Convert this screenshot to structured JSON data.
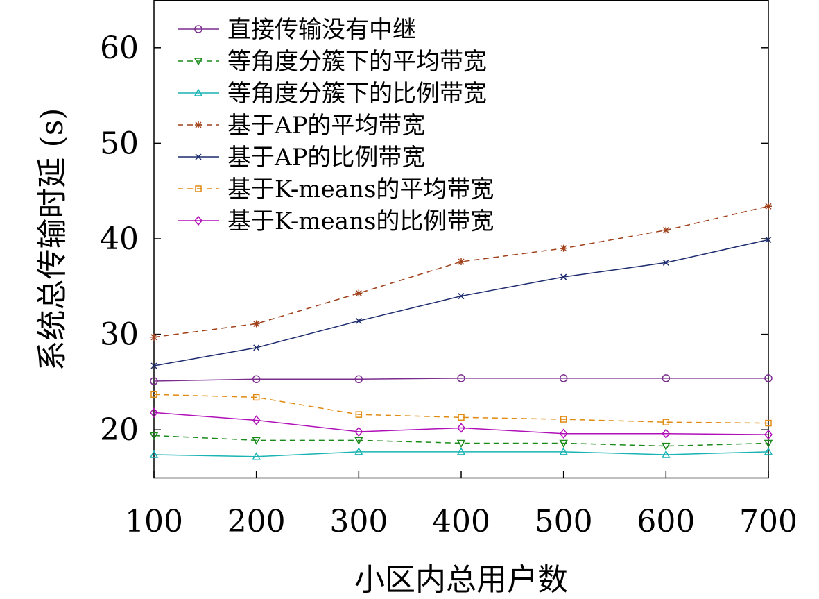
{
  "chart_data": {
    "type": "line",
    "xlabel": "小区内总用户数",
    "ylabel": "系统总传输时延 (s)",
    "x": [
      100,
      200,
      300,
      400,
      500,
      600,
      700
    ],
    "xlim": [
      100,
      700
    ],
    "ylim": [
      15,
      65
    ],
    "yticks": [
      20,
      30,
      40,
      50,
      60
    ],
    "xtick_labels": [
      "100",
      "200",
      "300",
      "400",
      "500",
      "600",
      "700"
    ],
    "ytick_labels": [
      "20",
      "30",
      "40",
      "50",
      "60"
    ],
    "grid": false,
    "legend_position": "top-left",
    "series": [
      {
        "name": "直接传输没有中继",
        "values": [
          25.1,
          25.3,
          25.3,
          25.4,
          25.4,
          25.4,
          25.4
        ],
        "color": "#7b2d8e",
        "marker": "circle",
        "dash": "solid"
      },
      {
        "name": "等角度分簇下的平均带宽",
        "values": [
          19.4,
          18.9,
          18.9,
          18.6,
          18.6,
          18.3,
          18.6
        ],
        "color": "#1a8a1a",
        "marker": "triangle-down",
        "dash": "dashed"
      },
      {
        "name": "等角度分簇下的比例带宽",
        "values": [
          17.4,
          17.2,
          17.7,
          17.7,
          17.7,
          17.4,
          17.7
        ],
        "color": "#19b3b3",
        "marker": "triangle-up",
        "dash": "solid"
      },
      {
        "name": "基于AP的平均带宽",
        "values": [
          29.7,
          31.1,
          34.3,
          37.6,
          39.0,
          40.9,
          43.4
        ],
        "color": "#a0401a",
        "marker": "asterisk",
        "dash": "dashed"
      },
      {
        "name": "基于AP的比例带宽",
        "values": [
          26.7,
          28.6,
          31.4,
          34.0,
          36.0,
          37.5,
          39.9
        ],
        "color": "#1c2a6e",
        "marker": "x",
        "dash": "solid"
      },
      {
        "name": "基于K-means的平均带宽",
        "values": [
          23.7,
          23.4,
          21.6,
          21.3,
          21.1,
          20.8,
          20.7
        ],
        "color": "#e08a10",
        "marker": "square",
        "dash": "dashed"
      },
      {
        "name": "基于K-means的比例带宽",
        "values": [
          21.8,
          21.0,
          19.8,
          20.2,
          19.6,
          19.6,
          19.5
        ],
        "color": "#b010b8",
        "marker": "diamond",
        "dash": "solid"
      }
    ]
  }
}
